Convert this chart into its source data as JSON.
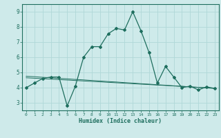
{
  "title": "",
  "xlabel": "Humidex (Indice chaleur)",
  "ylabel": "",
  "x_values": [
    0,
    1,
    2,
    3,
    4,
    5,
    6,
    7,
    8,
    9,
    10,
    11,
    12,
    13,
    14,
    15,
    16,
    17,
    18,
    19,
    20,
    21,
    22,
    23
  ],
  "y_main": [
    4.0,
    4.3,
    4.6,
    4.7,
    4.7,
    2.8,
    4.1,
    6.0,
    6.7,
    6.7,
    7.55,
    7.9,
    7.8,
    9.0,
    7.75,
    6.3,
    4.3,
    5.4,
    4.7,
    4.0,
    4.1,
    3.85,
    4.05,
    3.95
  ],
  "y_trend1": [
    4.75,
    4.72,
    4.68,
    4.65,
    4.61,
    4.58,
    4.54,
    4.51,
    4.47,
    4.44,
    4.4,
    4.37,
    4.33,
    4.3,
    4.26,
    4.23,
    4.19,
    4.16,
    4.12,
    4.09,
    4.05,
    4.02,
    3.98,
    3.95
  ],
  "y_trend2": [
    4.65,
    4.62,
    4.59,
    4.56,
    4.53,
    4.5,
    4.47,
    4.44,
    4.41,
    4.38,
    4.35,
    4.32,
    4.29,
    4.26,
    4.23,
    4.2,
    4.17,
    4.14,
    4.11,
    4.08,
    4.05,
    4.02,
    3.99,
    3.96
  ],
  "ylim": [
    2.5,
    9.5
  ],
  "xlim": [
    -0.5,
    23.5
  ],
  "yticks": [
    3,
    4,
    5,
    6,
    7,
    8,
    9
  ],
  "xticks": [
    0,
    1,
    2,
    3,
    4,
    5,
    6,
    7,
    8,
    9,
    10,
    11,
    12,
    13,
    14,
    15,
    16,
    17,
    18,
    19,
    20,
    21,
    22,
    23
  ],
  "line_color": "#1e6e5e",
  "bg_color": "#ceeaea",
  "grid_color": "#b0d8d8",
  "axes_color": "#1e6e5e",
  "border_color": "#1e6e5e"
}
